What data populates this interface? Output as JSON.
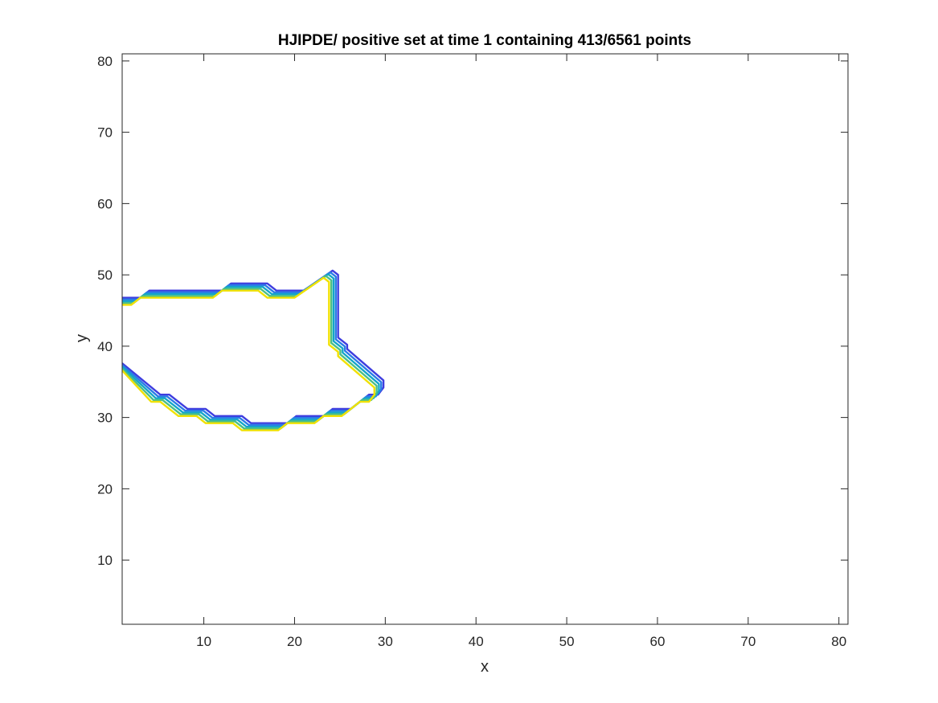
{
  "chart_data": {
    "type": "line",
    "title": "HJIPDE/ positive set at time 1 containing 413/6561 points",
    "xlabel": "x",
    "ylabel": "y",
    "xlim": [
      1,
      81
    ],
    "ylim": [
      1,
      81
    ],
    "xticks": [
      10,
      20,
      30,
      40,
      50,
      60,
      70,
      80
    ],
    "yticks": [
      10,
      20,
      30,
      40,
      50,
      60,
      70,
      80
    ],
    "grid": false,
    "box": true,
    "contour_levels": [
      {
        "color": "#3e3ddf",
        "offset": 0.0
      },
      {
        "color": "#2a7de6",
        "offset": 0.25
      },
      {
        "color": "#14a6c8",
        "offset": 0.5
      },
      {
        "color": "#4cbf86",
        "offset": 0.75
      },
      {
        "color": "#f0e100",
        "offset": 1.0
      }
    ],
    "series": [
      {
        "values": [
          [
            1,
            46.8
          ],
          [
            3,
            46.8
          ],
          [
            4,
            47.8
          ],
          [
            12,
            47.8
          ],
          [
            13,
            48.8
          ],
          [
            17,
            48.8
          ],
          [
            18,
            47.8
          ],
          [
            21,
            47.8
          ],
          [
            24.2,
            50.6
          ],
          [
            24.8,
            50.0
          ],
          [
            24.8,
            41.2
          ],
          [
            25.8,
            40.2
          ],
          [
            25.8,
            39.6
          ],
          [
            29.8,
            35.2
          ],
          [
            29.8,
            34.2
          ],
          [
            29.2,
            33.2
          ],
          [
            28.2,
            33.2
          ],
          [
            26.2,
            31.2
          ],
          [
            24.2,
            31.2
          ],
          [
            23.2,
            30.2
          ],
          [
            20.2,
            30.2
          ],
          [
            19.2,
            29.2
          ],
          [
            15.2,
            29.2
          ],
          [
            14.2,
            30.2
          ],
          [
            11.2,
            30.2
          ],
          [
            10.2,
            31.2
          ],
          [
            8.2,
            31.2
          ],
          [
            6.2,
            33.2
          ],
          [
            5.2,
            33.2
          ],
          [
            1,
            37.6
          ]
        ]
      }
    ]
  }
}
